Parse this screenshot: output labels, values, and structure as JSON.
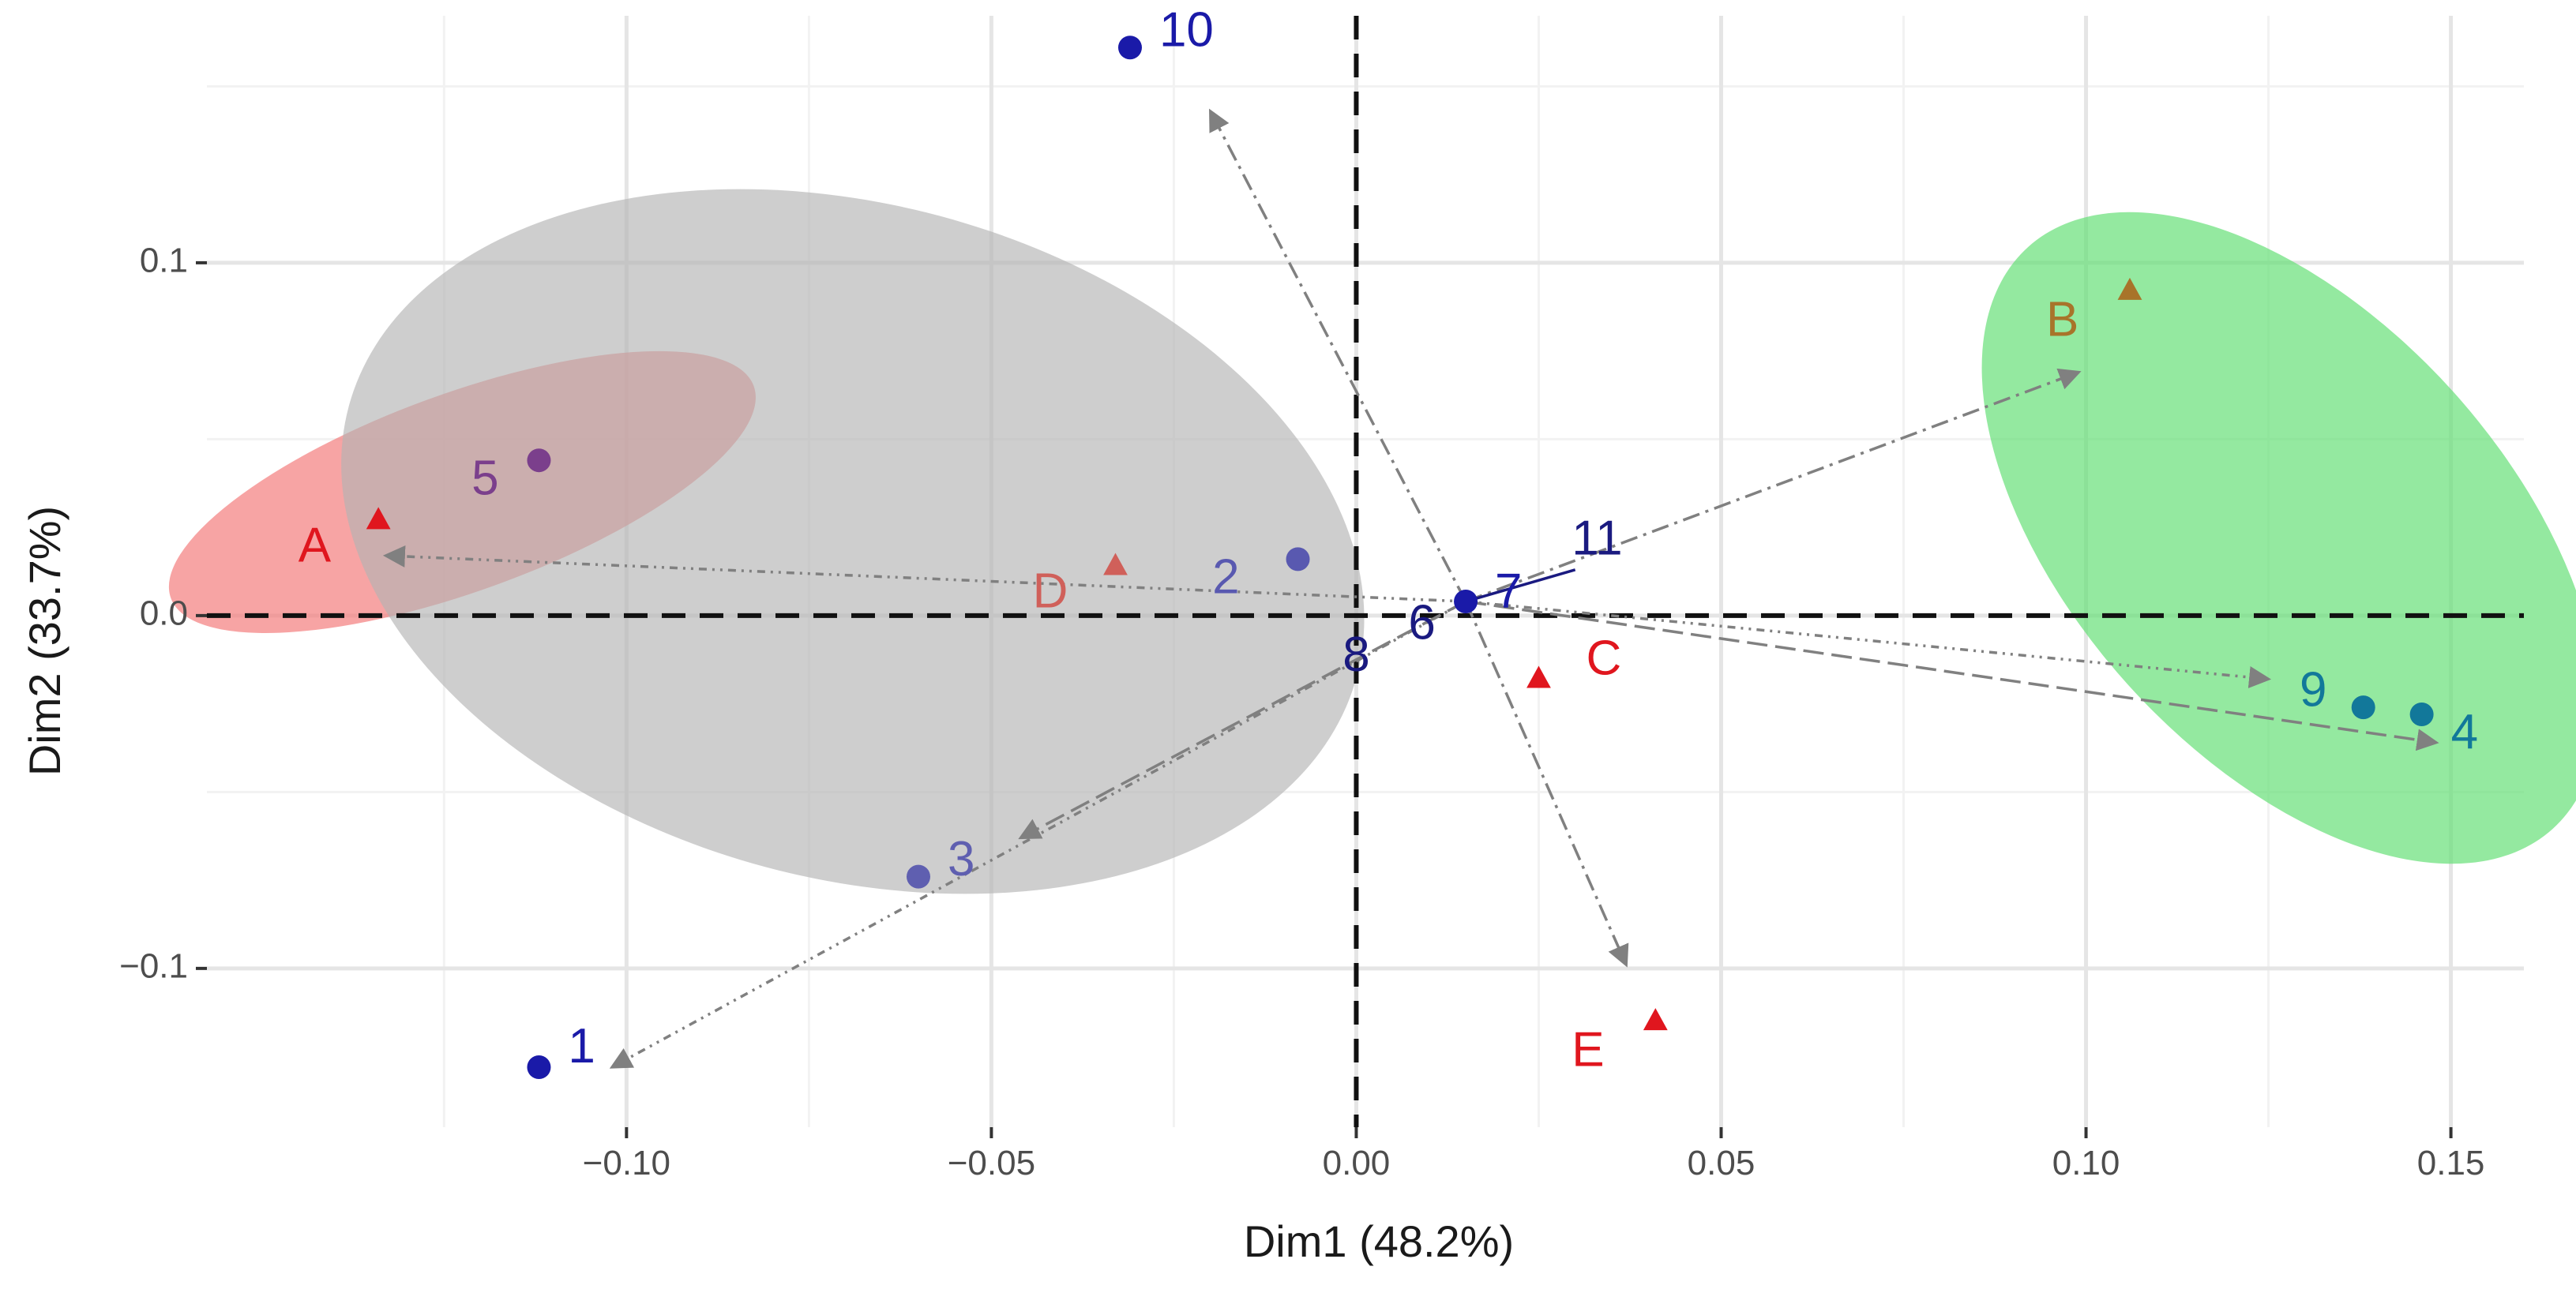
{
  "chart_data": {
    "type": "scatter",
    "title": "",
    "xlabel": "Dim1 (48.2%)",
    "ylabel": "Dim2 (33.7%)",
    "xlim": [
      -0.1575,
      0.16
    ],
    "ylim": [
      -0.145,
      0.17
    ],
    "x_ticks": [
      {
        "value": -0.1,
        "label": "−0.10"
      },
      {
        "value": -0.05,
        "label": "−0.05"
      },
      {
        "value": 0.0,
        "label": "0.00"
      },
      {
        "value": 0.05,
        "label": "0.05"
      },
      {
        "value": 0.1,
        "label": "0.10"
      },
      {
        "value": 0.15,
        "label": "0.15"
      }
    ],
    "y_ticks": [
      {
        "value": 0.1,
        "label": "0.1"
      },
      {
        "value": 0.0,
        "label": "0.0"
      },
      {
        "value": -0.1,
        "label": "−0.1"
      }
    ],
    "grid": true,
    "legend": "none",
    "ellipses": [
      {
        "name": "red-cluster",
        "cx": -0.1225,
        "cy": 0.035,
        "rx": 0.0425,
        "ry": 0.028,
        "angle_deg": -20,
        "color": "#f47e7e",
        "opacity": 0.7
      },
      {
        "name": "grey-cluster",
        "cx": -0.069,
        "cy": 0.021,
        "rx": 0.0715,
        "ry": 0.0955,
        "angle_deg": 15,
        "color": "#b3b3b3",
        "opacity": 0.65
      },
      {
        "name": "green-cluster",
        "cx": 0.128,
        "cy": 0.022,
        "rx": 0.03,
        "ry": 0.111,
        "angle_deg": -42,
        "color": "#67e077",
        "opacity": 0.7
      }
    ],
    "series": [
      {
        "name": "individuals",
        "marker": "circle",
        "points": [
          {
            "label": "1",
            "x": -0.112,
            "y": -0.128,
            "color": "#1a1aa8",
            "label_dx": 0.004,
            "label_dy": 0.005
          },
          {
            "label": "2",
            "x": -0.008,
            "y": 0.016,
            "color": "#5959b0",
            "label_dx": -0.008,
            "label_dy": -0.006
          },
          {
            "label": "3",
            "x": -0.06,
            "y": -0.074,
            "color": "#5f5fb0",
            "label_dx": 0.004,
            "label_dy": 0.004
          },
          {
            "label": "4",
            "x": 0.146,
            "y": -0.028,
            "color": "#12789a",
            "label_dx": 0.004,
            "label_dy": -0.006
          },
          {
            "label": "5",
            "x": -0.112,
            "y": 0.044,
            "color": "#7b3f8c",
            "label_dx": -0.0055,
            "label_dy": -0.006
          },
          {
            "label": "6",
            "x": 0.009,
            "y": -0.003,
            "color": "#1a1a80",
            "label_dx": 0.0,
            "label_dy": 0.0,
            "no_marker": true
          },
          {
            "label": "7",
            "x": 0.015,
            "y": 0.004,
            "color": "#1a1aa8",
            "label_dx": 0.004,
            "label_dy": 0.002
          },
          {
            "label": "8",
            "x": 0.0,
            "y": -0.012,
            "color": "#1a1a80",
            "label_dx": 0.0,
            "label_dy": 0.0,
            "no_marker": true
          },
          {
            "label": "9",
            "x": 0.138,
            "y": -0.026,
            "color": "#12789a",
            "label_dx": -0.005,
            "label_dy": 0.004
          },
          {
            "label": "10",
            "x": -0.031,
            "y": 0.161,
            "color": "#1a1aa8",
            "label_dx": 0.004,
            "label_dy": 0.004
          },
          {
            "label": "11",
            "x": 0.033,
            "y": 0.021,
            "color": "#1a1a80",
            "label_dx": 0.0,
            "label_dy": 0.0,
            "no_marker": true
          }
        ]
      },
      {
        "name": "variables",
        "marker": "triangle",
        "points": [
          {
            "label": "A",
            "x": -0.134,
            "y": 0.027,
            "color": "#e0161e",
            "label_dx": -0.0065,
            "label_dy": -0.008
          },
          {
            "label": "B",
            "x": 0.106,
            "y": 0.092,
            "color": "#a8742a",
            "label_dx": -0.007,
            "label_dy": -0.009
          },
          {
            "label": "C",
            "x": 0.025,
            "y": -0.018,
            "color": "#e0161e",
            "label_dx": 0.0065,
            "label_dy": 0.005
          },
          {
            "label": "D",
            "x": -0.033,
            "y": 0.014,
            "color": "#d0605a",
            "label_dx": -0.0065,
            "label_dy": -0.008
          },
          {
            "label": "E",
            "x": 0.041,
            "y": -0.115,
            "color": "#e0161e",
            "label_dx": -0.007,
            "label_dy": -0.009
          }
        ]
      }
    ],
    "arrows": [
      {
        "from": [
          0.015,
          0.004
        ],
        "to": [
          0.099,
          0.069
        ],
        "style": "dashdot"
      },
      {
        "from": [
          0.015,
          0.004
        ],
        "to": [
          -0.133,
          0.017
        ],
        "style": "dashdot2"
      },
      {
        "from": [
          0.015,
          0.004
        ],
        "to": [
          -0.046,
          -0.063
        ],
        "style": "dash"
      },
      {
        "from": [
          0.015,
          0.004
        ],
        "to": [
          -0.102,
          -0.128
        ],
        "style": "dashdot2"
      },
      {
        "from": [
          0.015,
          0.004
        ],
        "to": [
          -0.02,
          0.143
        ],
        "style": "dashdot"
      },
      {
        "from": [
          0.015,
          0.004
        ],
        "to": [
          0.037,
          -0.099
        ],
        "style": "dashdot"
      },
      {
        "from": [
          0.015,
          0.004
        ],
        "to": [
          0.125,
          -0.018
        ],
        "style": "dashdot2"
      },
      {
        "from": [
          0.015,
          0.004
        ],
        "to": [
          0.148,
          -0.036
        ],
        "style": "dash"
      }
    ],
    "segment_7_11": {
      "from": [
        0.015,
        0.004
      ],
      "to": [
        0.03,
        0.013
      ],
      "color": "#1a1a80"
    }
  }
}
